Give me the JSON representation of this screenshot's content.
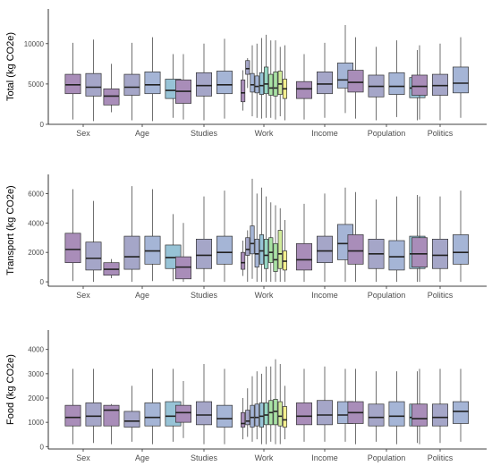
{
  "palette": [
    "#a98db9",
    "#a5a6c8",
    "#a5b5d6",
    "#97c3d6",
    "#96d7c3",
    "#a9e2a5",
    "#d1ec9c",
    "#f4ef8e"
  ],
  "chart_data": [
    {
      "type": "boxplot",
      "ylabel": "Total (kg CO2e)",
      "ylim": [
        0,
        14300
      ],
      "yticks": [
        {
          "value": 0,
          "label": "0"
        },
        {
          "value": 5000,
          "label": "5000"
        },
        {
          "value": 10000,
          "label": "10000"
        }
      ],
      "groups": [
        {
          "label": "Sex",
          "boxes": [
            {
              "min": 600,
              "q1": 3800,
              "median": 4900,
              "q3": 6200,
              "max": 10100
            },
            {
              "min": 400,
              "q1": 3500,
              "median": 4600,
              "q3": 6300,
              "max": 10500
            }
          ]
        },
        {
          "label": "Age",
          "boxes": [
            {
              "min": 1500,
              "q1": 2400,
              "median": 3500,
              "q3": 4400,
              "max": 7500
            },
            {
              "min": 500,
              "q1": 3600,
              "median": 4600,
              "q3": 6200,
              "max": 10100
            },
            {
              "min": 400,
              "q1": 3800,
              "median": 4900,
              "q3": 6500,
              "max": 10800
            },
            {
              "min": 800,
              "q1": 3200,
              "median": 4200,
              "q3": 5600,
              "max": 8700
            }
          ]
        },
        {
          "label": "Studies",
          "boxes": [
            {
              "min": 600,
              "q1": 2600,
              "median": 4100,
              "q3": 5500,
              "max": 8700
            },
            {
              "min": 500,
              "q1": 3500,
              "median": 4800,
              "q3": 6400,
              "max": 10000
            },
            {
              "min": 700,
              "q1": 3800,
              "median": 4900,
              "q3": 6600,
              "max": 10600
            }
          ]
        },
        {
          "label": "Work",
          "boxes": [
            {
              "min": 1700,
              "q1": 2800,
              "median": 3900,
              "q3": 5500,
              "max": 6700
            },
            {
              "min": 4500,
              "q1": 6200,
              "median": 6900,
              "q3": 7900,
              "max": 8200
            },
            {
              "min": 1000,
              "q1": 4000,
              "median": 4900,
              "q3": 6300,
              "max": 9800
            },
            {
              "min": 800,
              "q1": 3900,
              "median": 4700,
              "q3": 6000,
              "max": 10000
            },
            {
              "min": 700,
              "q1": 3700,
              "median": 4800,
              "q3": 6400,
              "max": 10700
            },
            {
              "min": 800,
              "q1": 3800,
              "median": 5000,
              "q3": 7100,
              "max": 11100
            },
            {
              "min": 800,
              "q1": 3600,
              "median": 4500,
              "q3": 6200,
              "max": 10400
            },
            {
              "min": 600,
              "q1": 3500,
              "median": 4500,
              "q3": 6500,
              "max": 10400
            },
            {
              "min": 1000,
              "q1": 3700,
              "median": 5000,
              "q3": 6600,
              "max": 9600
            },
            {
              "min": 500,
              "q1": 3200,
              "median": 4400,
              "q3": 5600,
              "max": 9800
            }
          ]
        },
        {
          "label": "Income",
          "boxes": [
            {
              "min": 600,
              "q1": 3200,
              "median": 4400,
              "q3": 5300,
              "max": 8700
            },
            {
              "min": 800,
              "q1": 3800,
              "median": 5000,
              "q3": 6500,
              "max": 10100
            },
            {
              "min": 1400,
              "q1": 4500,
              "median": 5500,
              "q3": 7600,
              "max": 12300
            }
          ]
        },
        {
          "label": "Population",
          "boxes": [
            {
              "min": 700,
              "q1": 4000,
              "median": 5200,
              "q3": 6700,
              "max": 10800
            },
            {
              "min": 500,
              "q1": 3400,
              "median": 4700,
              "q3": 6100,
              "max": 9600
            },
            {
              "min": 900,
              "q1": 3700,
              "median": 4700,
              "q3": 6400,
              "max": 10400
            },
            {
              "min": 500,
              "q1": 3300,
              "median": 4500,
              "q3": 5800,
              "max": 9200
            }
          ]
        },
        {
          "label": "Politics",
          "boxes": [
            {
              "min": 600,
              "q1": 3600,
              "median": 4700,
              "q3": 6100,
              "max": 9800
            },
            {
              "min": 500,
              "q1": 3600,
              "median": 4800,
              "q3": 6200,
              "max": 10000
            },
            {
              "min": 800,
              "q1": 3900,
              "median": 5100,
              "q3": 7100,
              "max": 10800
            }
          ]
        }
      ]
    },
    {
      "type": "boxplot",
      "ylabel": "Transport (kg CO2e)",
      "ylim": [
        -300,
        7300
      ],
      "yticks": [
        {
          "value": 0,
          "label": "0"
        },
        {
          "value": 2000,
          "label": "2000"
        },
        {
          "value": 4000,
          "label": "4000"
        },
        {
          "value": 6000,
          "label": "6000"
        }
      ],
      "groups": [
        {
          "label": "Sex",
          "boxes": [
            {
              "min": 50,
              "q1": 1300,
              "median": 2200,
              "q3": 3300,
              "max": 6300
            },
            {
              "min": 0,
              "q1": 800,
              "median": 1600,
              "q3": 2700,
              "max": 5500
            }
          ]
        },
        {
          "label": "Age",
          "boxes": [
            {
              "min": 250,
              "q1": 450,
              "median": 850,
              "q3": 1300,
              "max": 1550
            },
            {
              "min": 0,
              "q1": 850,
              "median": 1700,
              "q3": 3100,
              "max": 6500
            },
            {
              "min": 50,
              "q1": 1200,
              "median": 2100,
              "q3": 3100,
              "max": 6300
            },
            {
              "min": 50,
              "q1": 900,
              "median": 1650,
              "q3": 2500,
              "max": 4600
            }
          ]
        },
        {
          "label": "Studies",
          "boxes": [
            {
              "min": 0,
              "q1": 200,
              "median": 1000,
              "q3": 1700,
              "max": 4000
            },
            {
              "min": 0,
              "q1": 900,
              "median": 1800,
              "q3": 2900,
              "max": 5800
            },
            {
              "min": 0,
              "q1": 1200,
              "median": 2000,
              "q3": 3100,
              "max": 6200
            }
          ]
        },
        {
          "label": "Work",
          "boxes": [
            {
              "min": 400,
              "q1": 850,
              "median": 1300,
              "q3": 2000,
              "max": 2800
            },
            {
              "min": 0,
              "q1": 1800,
              "median": 2200,
              "q3": 3000,
              "max": 3500
            },
            {
              "min": 200,
              "q1": 1900,
              "median": 2600,
              "q3": 3800,
              "max": 7000
            },
            {
              "min": 0,
              "q1": 1000,
              "median": 1900,
              "q3": 2900,
              "max": 6000
            },
            {
              "min": 0,
              "q1": 1200,
              "median": 2100,
              "q3": 3200,
              "max": 6400
            },
            {
              "min": 0,
              "q1": 900,
              "median": 1800,
              "q3": 2900,
              "max": 5800
            },
            {
              "min": 0,
              "q1": 1300,
              "median": 2000,
              "q3": 3000,
              "max": 5400
            },
            {
              "min": 0,
              "q1": 700,
              "median": 1500,
              "q3": 2600,
              "max": 5200
            },
            {
              "min": 0,
              "q1": 900,
              "median": 1900,
              "q3": 3500,
              "max": 5000
            },
            {
              "min": 0,
              "q1": 800,
              "median": 1400,
              "q3": 2100,
              "max": 4200
            }
          ]
        },
        {
          "label": "Income",
          "boxes": [
            {
              "min": 0,
              "q1": 800,
              "median": 1500,
              "q3": 2600,
              "max": 5300
            },
            {
              "min": 0,
              "q1": 1300,
              "median": 2100,
              "q3": 3100,
              "max": 6000
            },
            {
              "min": 0,
              "q1": 1500,
              "median": 2600,
              "q3": 3900,
              "max": 6400
            }
          ]
        },
        {
          "label": "Population",
          "boxes": [
            {
              "min": 0,
              "q1": 1200,
              "median": 2100,
              "q3": 3200,
              "max": 6100
            },
            {
              "min": 0,
              "q1": 900,
              "median": 1900,
              "q3": 2900,
              "max": 5600
            },
            {
              "min": 0,
              "q1": 800,
              "median": 1700,
              "q3": 2800,
              "max": 5800
            },
            {
              "min": 0,
              "q1": 900,
              "median": 1900,
              "q3": 3100,
              "max": 5900
            }
          ]
        },
        {
          "label": "Politics",
          "boxes": [
            {
              "min": 0,
              "q1": 1000,
              "median": 1900,
              "q3": 3000,
              "max": 5800
            },
            {
              "min": 0,
              "q1": 900,
              "median": 1800,
              "q3": 2900,
              "max": 5800
            },
            {
              "min": 0,
              "q1": 1200,
              "median": 2000,
              "q3": 3200,
              "max": 6200
            }
          ]
        }
      ]
    },
    {
      "type": "boxplot",
      "ylabel": "Food (kg CO2e)",
      "ylim": [
        -100,
        4800
      ],
      "yticks": [
        {
          "value": 0,
          "label": "0"
        },
        {
          "value": 1000,
          "label": "1000"
        },
        {
          "value": 2000,
          "label": "2000"
        },
        {
          "value": 3000,
          "label": "3000"
        },
        {
          "value": 4000,
          "label": "4000"
        }
      ],
      "groups": [
        {
          "label": "Sex",
          "boxes": [
            {
              "min": 100,
              "q1": 850,
              "median": 1200,
              "q3": 1700,
              "max": 3200
            },
            {
              "min": 150,
              "q1": 850,
              "median": 1250,
              "q3": 1800,
              "max": 3200
            }
          ]
        },
        {
          "label": "Age",
          "boxes": [
            {
              "min": 100,
              "q1": 850,
              "median": 1500,
              "q3": 1700,
              "max": 1750
            },
            {
              "min": 200,
              "q1": 800,
              "median": 1050,
              "q3": 1450,
              "max": 2500
            },
            {
              "min": 100,
              "q1": 850,
              "median": 1200,
              "q3": 1800,
              "max": 3200
            },
            {
              "min": 200,
              "q1": 850,
              "median": 1250,
              "q3": 1850,
              "max": 3200
            }
          ]
        },
        {
          "label": "Studies",
          "boxes": [
            {
              "min": 350,
              "q1": 1000,
              "median": 1400,
              "q3": 1700,
              "max": 2700
            },
            {
              "min": 100,
              "q1": 900,
              "median": 1300,
              "q3": 1850,
              "max": 3400
            },
            {
              "min": 100,
              "q1": 800,
              "median": 1150,
              "q3": 1700,
              "max": 3200
            }
          ]
        },
        {
          "label": "Work",
          "boxes": [
            {
              "min": 300,
              "q1": 800,
              "median": 950,
              "q3": 1400,
              "max": 2000
            },
            {
              "min": 400,
              "q1": 900,
              "median": 1050,
              "q3": 1500,
              "max": 2400
            },
            {
              "min": 200,
              "q1": 800,
              "median": 1200,
              "q3": 1700,
              "max": 2900
            },
            {
              "min": 300,
              "q1": 850,
              "median": 1200,
              "q3": 1750,
              "max": 3100
            },
            {
              "min": 100,
              "q1": 800,
              "median": 1250,
              "q3": 1800,
              "max": 3000
            },
            {
              "min": 100,
              "q1": 900,
              "median": 1300,
              "q3": 1800,
              "max": 3300
            },
            {
              "min": 200,
              "q1": 900,
              "median": 1400,
              "q3": 1900,
              "max": 3300
            },
            {
              "min": 100,
              "q1": 900,
              "median": 1450,
              "q3": 1950,
              "max": 3600
            },
            {
              "min": 100,
              "q1": 850,
              "median": 1250,
              "q3": 1850,
              "max": 3400
            },
            {
              "min": 300,
              "q1": 800,
              "median": 1100,
              "q3": 1650,
              "max": 2500
            }
          ]
        },
        {
          "label": "Income",
          "boxes": [
            {
              "min": 200,
              "q1": 900,
              "median": 1250,
              "q3": 1800,
              "max": 3200
            },
            {
              "min": 200,
              "q1": 900,
              "median": 1300,
              "q3": 1900,
              "max": 3300
            },
            {
              "min": 200,
              "q1": 950,
              "median": 1300,
              "q3": 1850,
              "max": 3200
            }
          ]
        },
        {
          "label": "Population",
          "boxes": [
            {
              "min": 100,
              "q1": 950,
              "median": 1400,
              "q3": 1850,
              "max": 3200
            },
            {
              "min": 200,
              "q1": 850,
              "median": 1200,
              "q3": 1750,
              "max": 3100
            },
            {
              "min": 100,
              "q1": 850,
              "median": 1250,
              "q3": 1850,
              "max": 3100
            },
            {
              "min": 150,
              "q1": 850,
              "median": 1200,
              "q3": 1750,
              "max": 3100
            }
          ]
        },
        {
          "label": "Politics",
          "boxes": [
            {
              "min": 100,
              "q1": 850,
              "median": 1150,
              "q3": 1750,
              "max": 3200
            },
            {
              "min": 150,
              "q1": 850,
              "median": 1200,
              "q3": 1750,
              "max": 3200
            },
            {
              "min": 200,
              "q1": 950,
              "median": 1450,
              "q3": 1850,
              "max": 3200
            }
          ]
        }
      ]
    }
  ]
}
